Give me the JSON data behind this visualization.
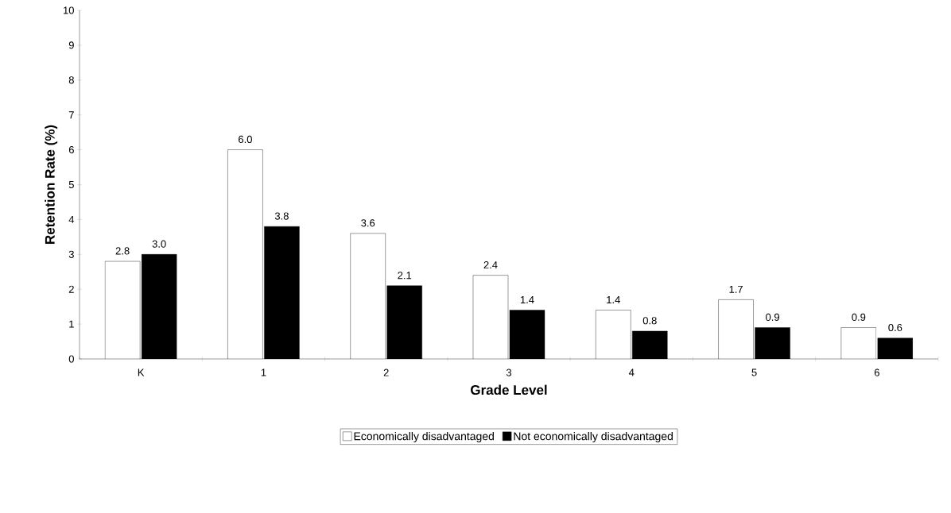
{
  "chart_data": {
    "type": "bar",
    "xlabel": "Grade Level",
    "ylabel": "Retention Rate (%)",
    "categories": [
      "K",
      "1",
      "2",
      "3",
      "4",
      "5",
      "6"
    ],
    "series": [
      {
        "name": "Economically disadvantaged",
        "color": "#ffffff",
        "values": [
          2.8,
          6.0,
          3.6,
          2.4,
          1.4,
          1.7,
          0.9
        ],
        "value_labels": [
          "2.8",
          "6.0",
          "3.6",
          "2.4",
          "1.4",
          "1.7",
          "0.9"
        ]
      },
      {
        "name": "Not economically disadvantaged",
        "color": "#000000",
        "values": [
          3.0,
          3.8,
          2.1,
          1.4,
          0.8,
          0.9,
          0.6
        ],
        "value_labels": [
          "3.0",
          "3.8",
          "2.1",
          "1.4",
          "0.8",
          "0.9",
          "0.6"
        ]
      }
    ],
    "ylim": [
      0,
      10
    ],
    "yticks": [
      0,
      1,
      2,
      3,
      4,
      5,
      6,
      7,
      8,
      9,
      10
    ],
    "grid": false,
    "legend": "bottom"
  }
}
